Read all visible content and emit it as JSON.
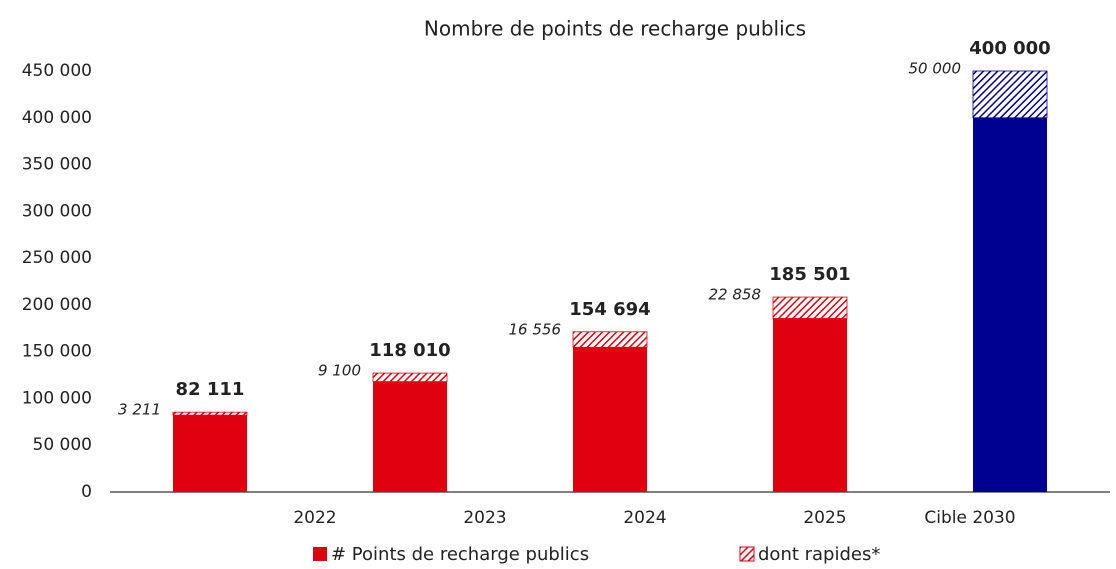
{
  "chart_data": {
    "type": "stacked_bar",
    "title": "Nombre de points de recharge publics",
    "categories": [
      "2022",
      "2023",
      "2024",
      "2025",
      "Cible 2030"
    ],
    "series": [
      {
        "name": "# Points de recharge publics",
        "colors": [
          "#e1000f",
          "#e1000f",
          "#e1000f",
          "#e1000f",
          "#000091"
        ],
        "values": [
          82111,
          118010,
          154694,
          185501,
          400000
        ],
        "value_labels": [
          "82 111",
          "118 010",
          "154 694",
          "185 501",
          "400 000"
        ]
      },
      {
        "name": "dont rapides*",
        "pattern": "hatch",
        "colors": [
          "#e1000f",
          "#e1000f",
          "#e1000f",
          "#e1000f",
          "#000091"
        ],
        "values": [
          3211,
          9100,
          16556,
          22858,
          50000
        ],
        "value_labels": [
          "3 211",
          "9 100",
          "16 556",
          "22 858",
          "50 000"
        ]
      }
    ],
    "ylim": [
      0,
      450000
    ],
    "yticks": [
      0,
      {
        "value": 50000,
        "label": "50 000"
      },
      {
        "value": 100000,
        "label": "100 000"
      },
      {
        "value": 150000,
        "label": "150 000"
      },
      {
        "value": 200000,
        "label": "200 000"
      },
      {
        "value": 250000,
        "label": "250 000"
      },
      {
        "value": 300000,
        "label": "300 000"
      },
      {
        "value": 350000,
        "label": "350 000"
      },
      {
        "value": 400000,
        "label": "400 000"
      },
      {
        "value": 450000,
        "label": "450 000"
      }
    ],
    "grid": false
  }
}
